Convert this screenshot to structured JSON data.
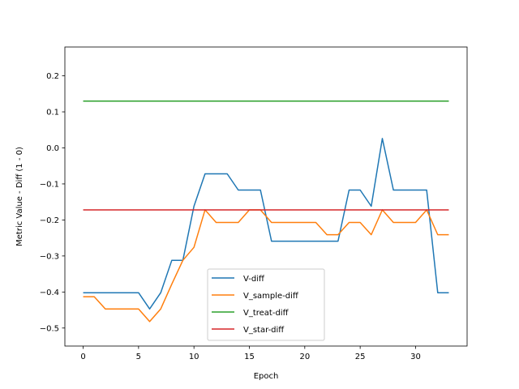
{
  "chart_data": {
    "type": "line",
    "title": "",
    "xlabel": "Epoch",
    "ylabel": "Metric Value - Diff (1 - 0)",
    "xlim": [
      -1.65,
      34.65
    ],
    "ylim": [
      -0.55,
      0.28
    ],
    "x_ticks": [
      0,
      5,
      10,
      15,
      20,
      25,
      30
    ],
    "x_tick_labels": [
      "0",
      "5",
      "10",
      "15",
      "20",
      "25",
      "30"
    ],
    "y_ticks": [
      -0.5,
      -0.4,
      -0.3,
      -0.2,
      -0.1,
      0.0,
      0.1,
      0.2
    ],
    "y_tick_labels": [
      "−0.5",
      "−0.4",
      "−0.3",
      "−0.2",
      "−0.1",
      "0.0",
      "0.1",
      "0.2"
    ],
    "grid": false,
    "legend_position": "lower-center",
    "x": [
      0,
      1,
      2,
      3,
      4,
      5,
      6,
      7,
      8,
      9,
      10,
      11,
      12,
      13,
      14,
      15,
      16,
      17,
      18,
      19,
      20,
      21,
      22,
      23,
      24,
      25,
      26,
      27,
      28,
      29,
      30,
      31,
      32,
      33
    ],
    "series": [
      {
        "name": "V-diff",
        "color": "#1f77b4",
        "values": [
          -0.402,
          -0.402,
          -0.402,
          -0.402,
          -0.402,
          -0.402,
          -0.447,
          -0.402,
          -0.312,
          -0.312,
          -0.162,
          -0.072,
          -0.072,
          -0.072,
          -0.117,
          -0.117,
          -0.117,
          -0.259,
          -0.259,
          -0.259,
          -0.259,
          -0.259,
          -0.259,
          -0.259,
          -0.117,
          -0.117,
          -0.162,
          0.026,
          -0.117,
          -0.117,
          -0.117,
          -0.117,
          -0.402,
          -0.402
        ]
      },
      {
        "name": "V_sample-diff",
        "color": "#ff7f0e",
        "values": [
          -0.413,
          -0.413,
          -0.447,
          -0.447,
          -0.447,
          -0.447,
          -0.482,
          -0.447,
          -0.378,
          -0.312,
          -0.276,
          -0.172,
          -0.207,
          -0.207,
          -0.207,
          -0.172,
          -0.172,
          -0.207,
          -0.207,
          -0.207,
          -0.207,
          -0.207,
          -0.241,
          -0.241,
          -0.207,
          -0.207,
          -0.241,
          -0.172,
          -0.207,
          -0.207,
          -0.207,
          -0.172,
          -0.241,
          -0.241
        ]
      },
      {
        "name": "V_treat-diff",
        "color": "#2ca02c",
        "values": [
          0.13,
          0.13,
          0.13,
          0.13,
          0.13,
          0.13,
          0.13,
          0.13,
          0.13,
          0.13,
          0.13,
          0.13,
          0.13,
          0.13,
          0.13,
          0.13,
          0.13,
          0.13,
          0.13,
          0.13,
          0.13,
          0.13,
          0.13,
          0.13,
          0.13,
          0.13,
          0.13,
          0.13,
          0.13,
          0.13,
          0.13,
          0.13,
          0.13,
          0.13
        ]
      },
      {
        "name": "V_star-diff",
        "color": "#d62728",
        "values": [
          -0.172,
          -0.172,
          -0.172,
          -0.172,
          -0.172,
          -0.172,
          -0.172,
          -0.172,
          -0.172,
          -0.172,
          -0.172,
          -0.172,
          -0.172,
          -0.172,
          -0.172,
          -0.172,
          -0.172,
          -0.172,
          -0.172,
          -0.172,
          -0.172,
          -0.172,
          -0.172,
          -0.172,
          -0.172,
          -0.172,
          -0.172,
          -0.172,
          -0.172,
          -0.172,
          -0.172,
          -0.172,
          -0.172,
          -0.172
        ]
      }
    ]
  }
}
